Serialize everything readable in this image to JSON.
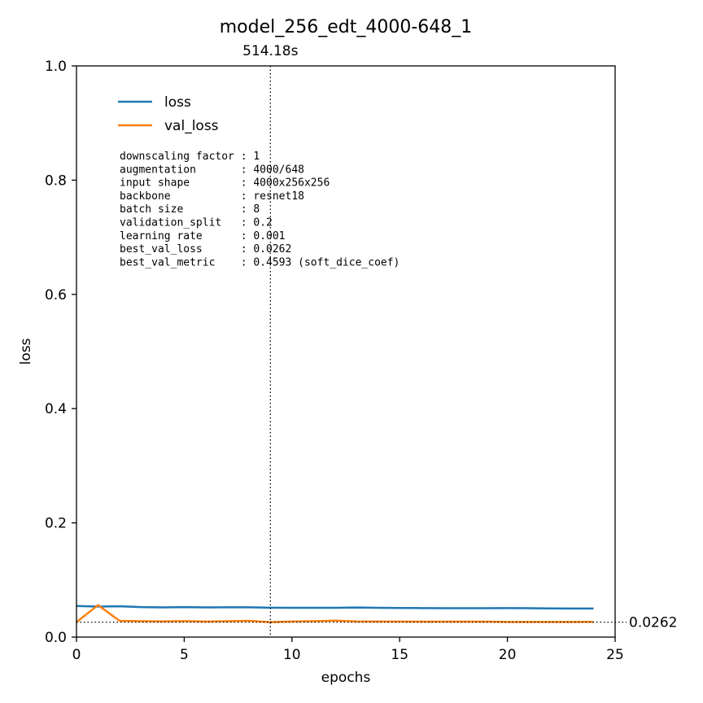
{
  "chart_data": {
    "type": "line",
    "title": "model_256_edt_4000-648_1",
    "xlabel": "epochs",
    "ylabel": "loss",
    "xlim": [
      0,
      25
    ],
    "ylim": [
      0,
      1.0
    ],
    "xticks": [
      "0",
      "5",
      "10",
      "15",
      "20",
      "25"
    ],
    "yticks": [
      "0.0",
      "0.2",
      "0.4",
      "0.6",
      "0.8",
      "1.0"
    ],
    "grid": false,
    "legend_position": "upper-left",
    "x": [
      0,
      1,
      2,
      3,
      4,
      5,
      6,
      7,
      8,
      9,
      10,
      11,
      12,
      13,
      14,
      15,
      16,
      17,
      18,
      19,
      20,
      21,
      22,
      23,
      24
    ],
    "series": [
      {
        "name": "loss",
        "color": "#1f77b4",
        "values": [
          0.0545,
          0.0535,
          0.054,
          0.0525,
          0.052,
          0.0525,
          0.052,
          0.0522,
          0.0522,
          0.0515,
          0.0512,
          0.0512,
          0.0512,
          0.0518,
          0.0512,
          0.051,
          0.0508,
          0.0505,
          0.0505,
          0.0505,
          0.0508,
          0.0505,
          0.0502,
          0.05,
          0.05
        ]
      },
      {
        "name": "val_loss",
        "color": "#ff7f0e",
        "values": [
          0.0262,
          0.056,
          0.0285,
          0.0278,
          0.0275,
          0.028,
          0.0272,
          0.0278,
          0.0285,
          0.0262,
          0.0272,
          0.0278,
          0.0288,
          0.0275,
          0.0272,
          0.0272,
          0.027,
          0.027,
          0.027,
          0.027,
          0.0265,
          0.0265,
          0.0265,
          0.0265,
          0.0268
        ]
      }
    ],
    "annotations": {
      "vline_x": 9,
      "vline_label": "514.18s",
      "hline_y": 0.0262,
      "hline_label": "0.0262"
    },
    "info_lines": [
      "downscaling factor : 1",
      "augmentation       : 4000/648",
      "input shape        : 4000x256x256",
      "backbone           : resnet18",
      "batch size         : 8",
      "validation_split   : 0.2",
      "learning rate      : 0.001",
      "best_val_loss      : 0.0262",
      "best_val_metric    : 0.4593 (soft_dice_coef)"
    ]
  }
}
